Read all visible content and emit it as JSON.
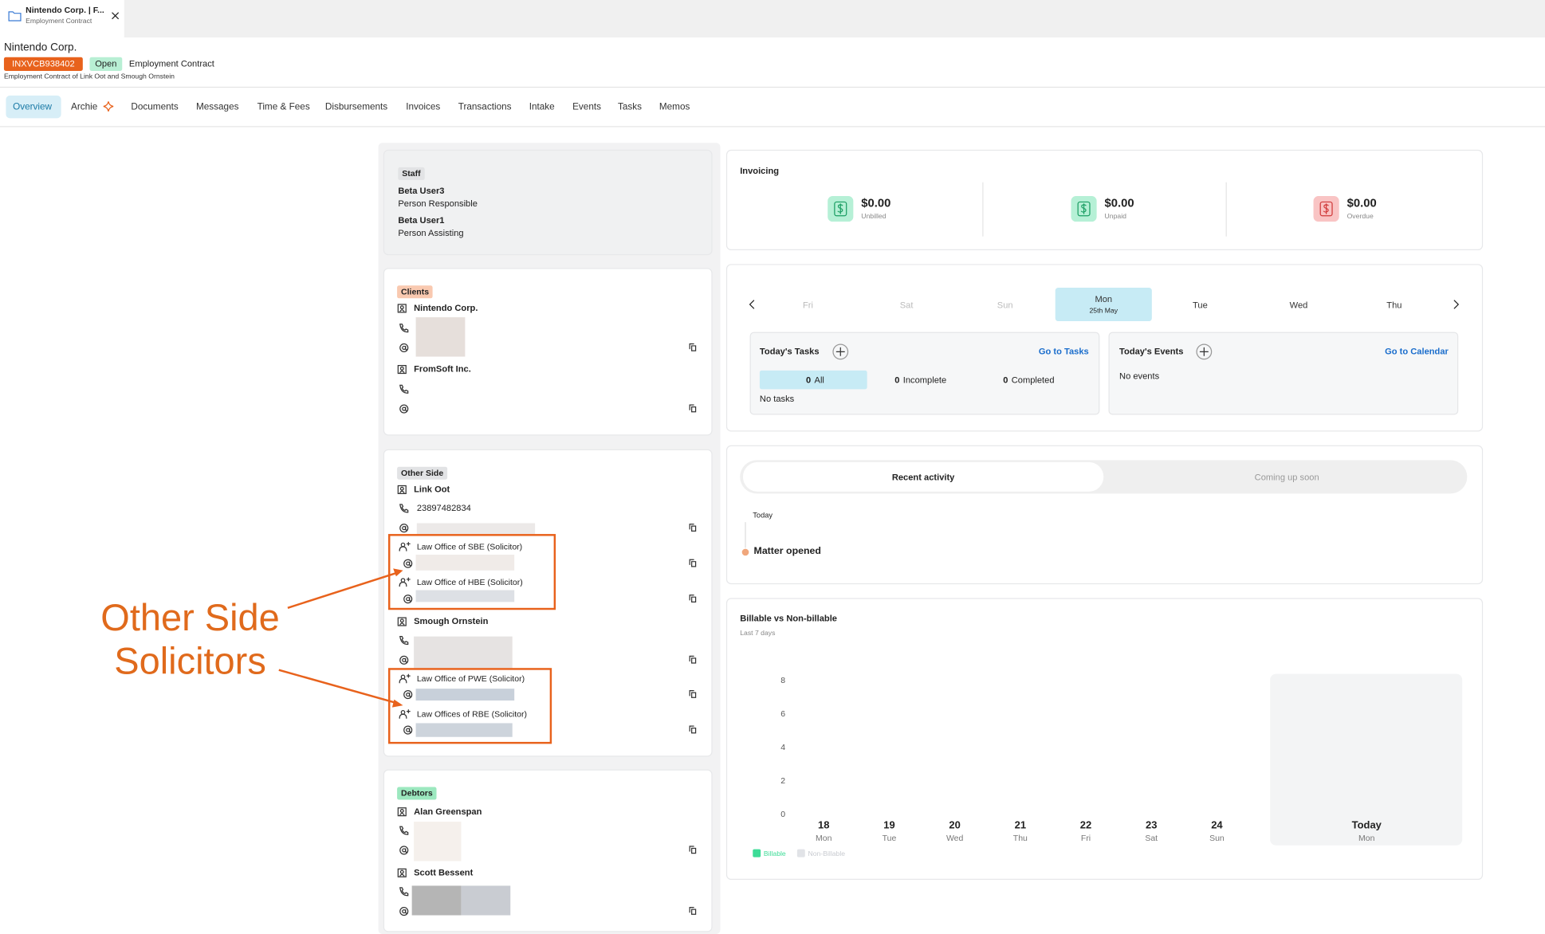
{
  "tab": {
    "title": "Nintendo Corp. | F...",
    "subtitle": "Employment Contract"
  },
  "header": {
    "client": "Nintendo Corp.",
    "matter_id": "INXVCB938402",
    "status": "Open",
    "matter_type": "Employment Contract",
    "description": "Employment Contract of Link Oot and Smough Ornstein"
  },
  "nav": [
    "Overview",
    "Archie",
    "Documents",
    "Messages",
    "Time & Fees",
    "Disbursements",
    "Invoices",
    "Transactions",
    "Intake",
    "Events",
    "Tasks",
    "Memos"
  ],
  "staff": {
    "title": "Staff",
    "members": [
      {
        "name": "Beta User3",
        "role": "Person Responsible"
      },
      {
        "name": "Beta User1",
        "role": "Person Assisting"
      }
    ]
  },
  "clients": {
    "title": "Clients",
    "contacts": [
      {
        "name": "Nintendo Corp."
      },
      {
        "name": "FromSoft Inc."
      }
    ]
  },
  "other_side": {
    "title": "Other Side",
    "contacts": [
      {
        "name": "Link Oot",
        "phone": "23897482834",
        "solicitors": [
          "Law Office of SBE (Solicitor)",
          "Law Office of HBE (Solicitor)"
        ]
      },
      {
        "name": "Smough Ornstein",
        "solicitors": [
          "Law Office of PWE (Solicitor)",
          "Law Offices of RBE (Solicitor)"
        ]
      }
    ]
  },
  "debtors": {
    "title": "Debtors",
    "contacts": [
      {
        "name": "Alan Greenspan"
      },
      {
        "name": "Scott Bessent"
      }
    ]
  },
  "annotation": [
    "Other Side",
    "Solicitors"
  ],
  "invoicing": {
    "title": "Invoicing",
    "items": [
      {
        "amount": "$0.00",
        "label": "Unbilled"
      },
      {
        "amount": "$0.00",
        "label": "Unpaid"
      },
      {
        "amount": "$0.00",
        "label": "Overdue"
      }
    ]
  },
  "calendar": {
    "days": [
      {
        "day": "Fri"
      },
      {
        "day": "Sat"
      },
      {
        "day": "Sun"
      },
      {
        "day": "Mon",
        "date": "25th May"
      },
      {
        "day": "Tue"
      },
      {
        "day": "Wed"
      },
      {
        "day": "Thu"
      }
    ]
  },
  "tasks": {
    "title": "Today's Tasks",
    "link": "Go to Tasks",
    "filters": [
      {
        "count": 0,
        "label": "All"
      },
      {
        "count": 0,
        "label": "Incomplete"
      },
      {
        "count": 0,
        "label": "Completed"
      }
    ],
    "empty": "No tasks"
  },
  "events": {
    "title": "Today's Events",
    "link": "Go to Calendar",
    "empty": "No events"
  },
  "activity": {
    "tabs": [
      "Recent activity",
      "Coming up soon"
    ],
    "group": "Today",
    "items": [
      "Matter opened"
    ]
  },
  "chart_data": {
    "type": "bar",
    "title": "Billable vs Non-billable",
    "subtitle": "Last 7 days",
    "categories": [
      "18",
      "19",
      "20",
      "21",
      "22",
      "23",
      "24",
      "Today"
    ],
    "weekdays": [
      "Mon",
      "Tue",
      "Wed",
      "Thu",
      "Fri",
      "Sat",
      "Sun",
      "Mon"
    ],
    "series": [
      {
        "name": "Billable",
        "color": "#3ddc97",
        "values": [
          0,
          0,
          0,
          0,
          0,
          0,
          0,
          0
        ]
      },
      {
        "name": "Non-Billable",
        "color": "#e1e3e7",
        "values": [
          0,
          0,
          0,
          0,
          0,
          0,
          0,
          0
        ]
      }
    ],
    "ylim": [
      0,
      8
    ],
    "yticks": [
      0,
      2,
      4,
      6,
      8
    ]
  }
}
